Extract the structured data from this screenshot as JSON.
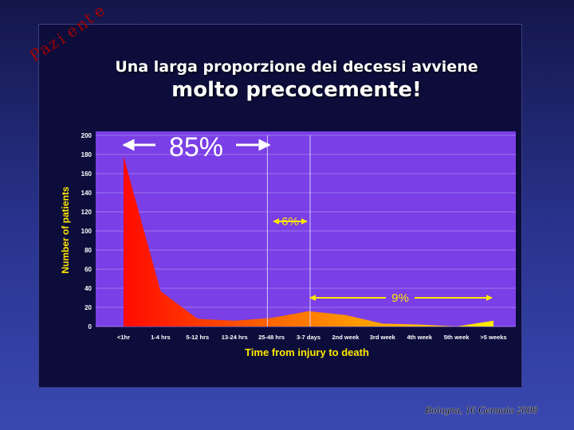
{
  "stamp": {
    "letters": [
      "P",
      "a",
      "z",
      "i",
      "e",
      "n",
      "t",
      "e"
    ],
    "color": "#a00000"
  },
  "title_line1": "Una larga proporzione dei decessi avviene",
  "title_line2": "molto precocemente!",
  "footer": "Bologna, 16 Gennaio 2008",
  "annotations": {
    "early": "85%",
    "middle": "6%",
    "late": "9%"
  },
  "chart_data": {
    "type": "area",
    "title": "",
    "xlabel": "Time from injury to death",
    "ylabel": "Number of patients",
    "ylim": [
      0,
      200
    ],
    "yticks": [
      0,
      20,
      40,
      60,
      80,
      100,
      120,
      140,
      160,
      180,
      200
    ],
    "grid": true,
    "categories": [
      "<1hr",
      "1-4 hrs",
      "5-12 hrs",
      "13-24 hrs",
      "25-48 hrs",
      "3-7 days",
      "2nd week",
      "3rd week",
      "4th week",
      "5th week",
      ">5 weeks"
    ],
    "values": [
      178,
      37,
      8,
      6,
      9,
      16,
      12,
      3,
      2,
      0,
      6
    ],
    "colors": {
      "plot_bg": "#7a3fe6",
      "grid": "#9d77f0",
      "area_start": "#ff0a00",
      "area_end": "#ffee00",
      "axis_text": "#ffe800",
      "tick_text": "#ffffff"
    }
  }
}
